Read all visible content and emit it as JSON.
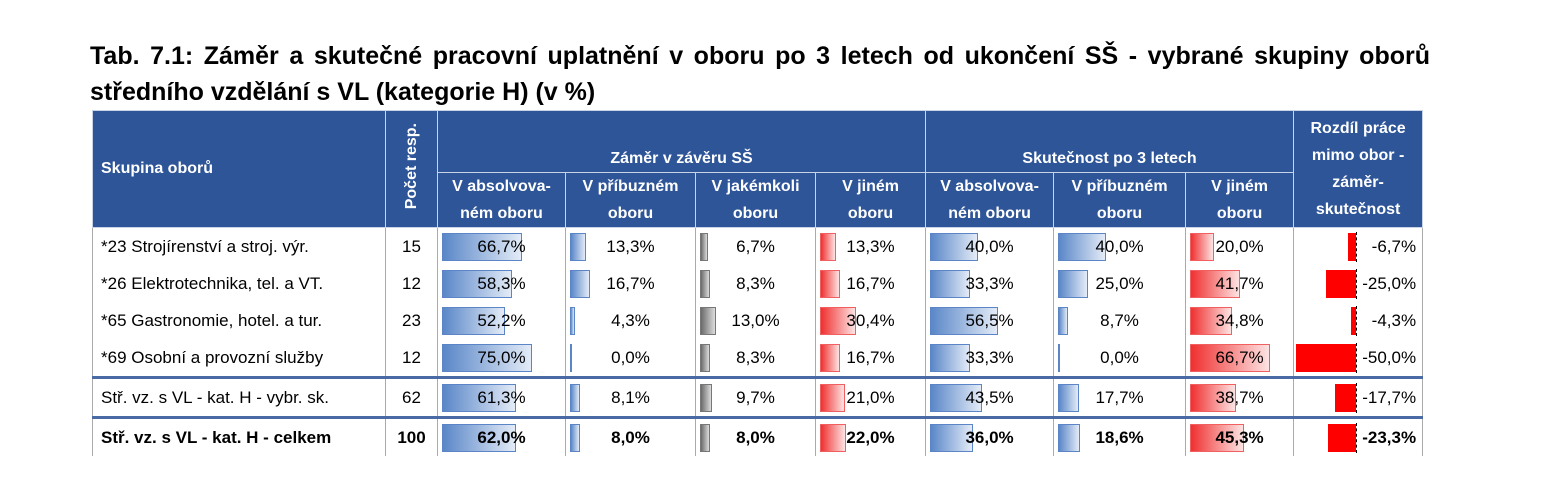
{
  "title": "Tab. 7.1: Záměr a skutečné pracovní uplatnění v oboru po 3 letech od ukončení SŠ - vybrané skupiny oborů středního vzdělání s VL (kategorie H) (v %)",
  "table": {
    "header": {
      "group": "Skupina oborů",
      "count": "Počet resp.",
      "groups": [
        "Záměr v závěru SŠ",
        "Skutečnost po 3 letech"
      ],
      "columns": [
        "V absolvova-ném oboru",
        "V příbuzném oboru",
        "V jakémkoli oboru",
        "V jiném oboru",
        "V absolvova-ném oboru",
        "V příbuzném oboru",
        "V jiném oboru"
      ],
      "diff": "Rozdíl práce mimo obor - záměr-skutečnost"
    },
    "rows": [
      [
        "*23 Strojírenství a stroj. výr.",
        "15",
        "66,7%",
        "13,3%",
        "6,7%",
        "13,3%",
        "40,0%",
        "40,0%",
        "20,0%",
        "-6,7%"
      ],
      [
        "*26 Elektrotechnika, tel. a VT.",
        "12",
        "58,3%",
        "16,7%",
        "8,3%",
        "16,7%",
        "33,3%",
        "25,0%",
        "41,7%",
        "-25,0%"
      ],
      [
        "*65 Gastronomie, hotel. a tur.",
        "23",
        "52,2%",
        "4,3%",
        "13,0%",
        "30,4%",
        "56,5%",
        "8,7%",
        "34,8%",
        "-4,3%"
      ],
      [
        "*69 Osobní a provozní služby",
        "12",
        "75,0%",
        "0,0%",
        "8,3%",
        "16,7%",
        "33,3%",
        "0,0%",
        "66,7%",
        "-50,0%"
      ],
      [
        "Stř. vz. s VL - kat. H - vybr. sk.",
        "62",
        "61,3%",
        "8,1%",
        "9,7%",
        "21,0%",
        "43,5%",
        "17,7%",
        "38,7%",
        "-17,7%"
      ],
      [
        "Stř. vz. s VL - kat. H - celkem",
        "100",
        "62,0%",
        "8,0%",
        "8,0%",
        "22,0%",
        "36,0%",
        "18,6%",
        "45,3%",
        "-23,3%"
      ]
    ]
  }
}
